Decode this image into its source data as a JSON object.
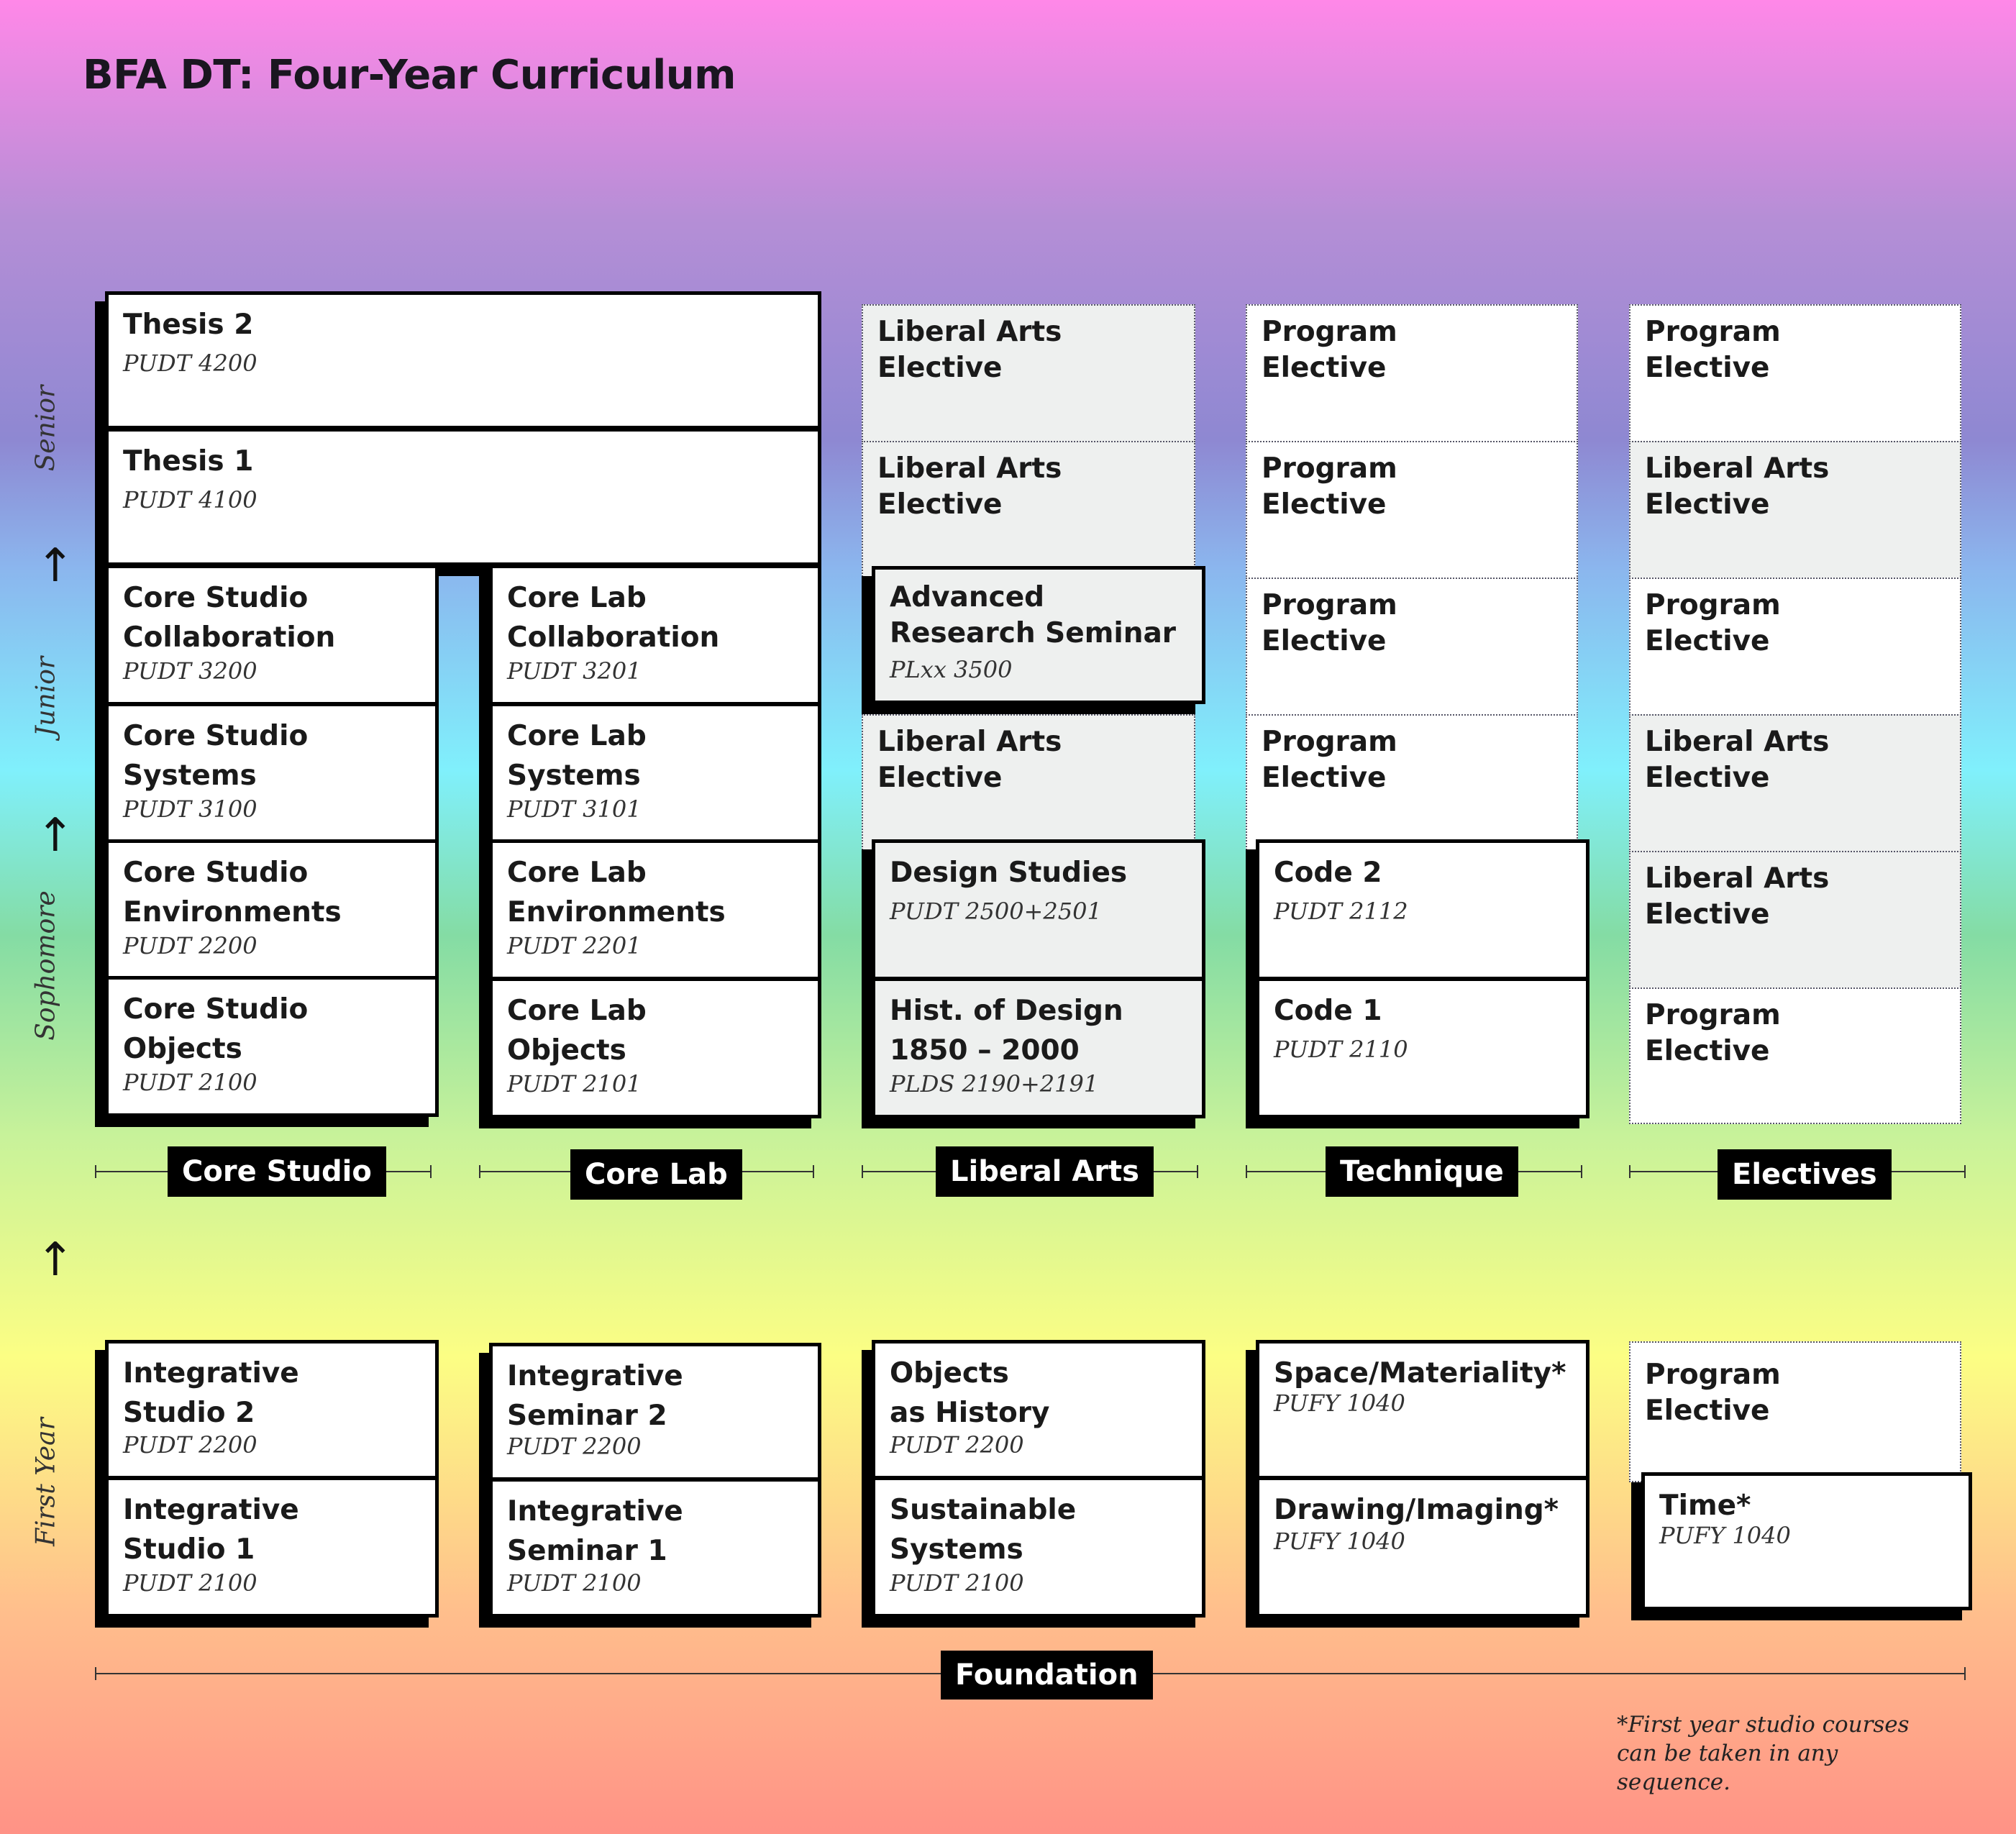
{
  "title": "BFA DT: Four-Year Curriculum",
  "year_labels": {
    "senior": "Senior",
    "junior": "Junior",
    "sophomore": "Sophomore",
    "first_year": "First Year"
  },
  "columns": {
    "core_studio": "Core Studio",
    "core_lab": "Core Lab",
    "liberal_arts": "Liberal Arts",
    "technique": "Technique",
    "electives": "Electives"
  },
  "foundation_label": "Foundation",
  "footnote": "*First year studio courses can be taken in any sequence.",
  "core_studio": [
    {
      "name": "Thesis 2",
      "code": "PUDT 4200"
    },
    {
      "name": "Thesis 1",
      "code": "PUDT 4100"
    },
    {
      "name": "Core Studio\nCollaboration",
      "code": "PUDT 3200"
    },
    {
      "name": "Core Studio\nSystems",
      "code": "PUDT 3100"
    },
    {
      "name": "Core Studio\nEnvironments",
      "code": "PUDT 2200"
    },
    {
      "name": "Core Studio\nObjects",
      "code": "PUDT 2100"
    }
  ],
  "core_lab": [
    {
      "name": "Core Lab\nCollaboration",
      "code": "PUDT 3201"
    },
    {
      "name": "Core Lab\nSystems",
      "code": "PUDT 3101"
    },
    {
      "name": "Core Lab\nEnvironments",
      "code": "PUDT 2201"
    },
    {
      "name": "Core Lab\nObjects",
      "code": "PUDT 2101"
    }
  ],
  "liberal_arts": [
    {
      "name": "Liberal Arts\nElective"
    },
    {
      "name": "Liberal Arts\nElective"
    },
    {
      "name": "Advanced\nResearch Seminar",
      "code": "PLxx 3500"
    },
    {
      "name": "Liberal Arts\nElective"
    },
    {
      "name": "Design Studies",
      "code": "PUDT 2500+2501"
    },
    {
      "name": "Hist. of Design\n1850 – 2000",
      "code": "PLDS 2190+2191"
    }
  ],
  "technique": [
    {
      "name": "Program\nElective"
    },
    {
      "name": "Program\nElective"
    },
    {
      "name": "Program\nElective"
    },
    {
      "name": "Program\nElective"
    },
    {
      "name": "Code 2",
      "code": "PUDT 2112"
    },
    {
      "name": "Code 1",
      "code": "PUDT 2110"
    }
  ],
  "electives": [
    {
      "name": "Program\nElective"
    },
    {
      "name": "Liberal Arts\nElective"
    },
    {
      "name": "Program\nElective"
    },
    {
      "name": "Liberal Arts\nElective"
    },
    {
      "name": "Liberal Arts\nElective"
    },
    {
      "name": "Program\nElective"
    }
  ],
  "foundation": {
    "studio": [
      {
        "name": "Integrative\nStudio 2",
        "code": "PUDT 2200"
      },
      {
        "name": "Integrative\nStudio 1",
        "code": "PUDT 2100"
      }
    ],
    "seminar": [
      {
        "name": "Integrative\nSeminar 2",
        "code": "PUDT 2200"
      },
      {
        "name": "Integrative\nSeminar 1",
        "code": "PUDT 2100"
      }
    ],
    "liberal": [
      {
        "name": "Objects\nas History",
        "code": "PUDT 2200"
      },
      {
        "name": "Sustainable\nSystems",
        "code": "PUDT 2100"
      }
    ],
    "technique": [
      {
        "name": "Space/Materiality*",
        "code": "PUFY 1040"
      },
      {
        "name": "Drawing/Imaging*",
        "code": "PUFY 1040"
      }
    ],
    "electives": [
      {
        "name": "Program\nElective"
      },
      {
        "name": "Time*",
        "code": "PUFY 1040"
      }
    ]
  }
}
